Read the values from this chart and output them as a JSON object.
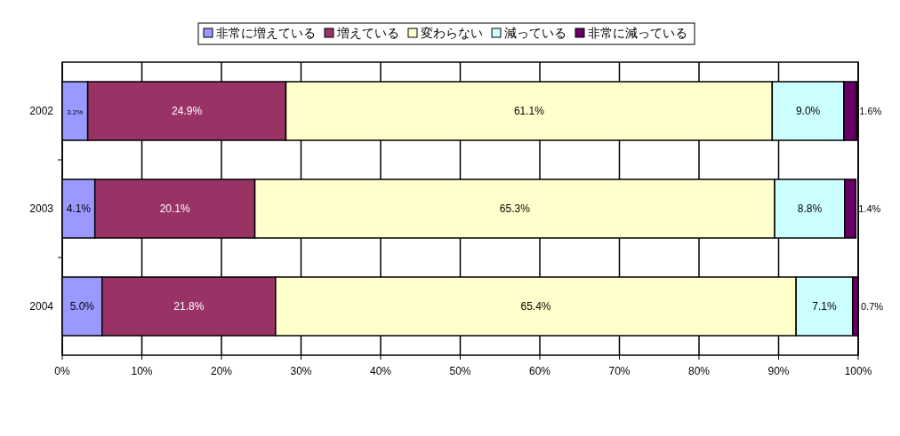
{
  "chart_data": {
    "type": "bar",
    "orientation": "horizontal",
    "stacked": true,
    "categories": [
      "2002",
      "2003",
      "2004"
    ],
    "series": [
      {
        "name": "非常に増えている",
        "color": "#9999ff",
        "values": [
          3.2,
          4.1,
          5.0
        ],
        "value_labels": [
          "3.2%",
          "4.1%",
          "5.0%"
        ]
      },
      {
        "name": "増えている",
        "color": "#993366",
        "values": [
          24.9,
          20.1,
          21.8
        ],
        "value_labels": [
          "24.9%",
          "20.1%",
          "21.8%"
        ]
      },
      {
        "name": "変わらない",
        "color": "#ffffcc",
        "values": [
          61.1,
          65.3,
          65.4
        ],
        "value_labels": [
          "61.1%",
          "65.3%",
          "65.4%"
        ]
      },
      {
        "name": "減っている",
        "color": "#ccffff",
        "values": [
          9.0,
          8.8,
          7.1
        ],
        "value_labels": [
          "9.0%",
          "8.8%",
          "7.1%"
        ]
      },
      {
        "name": "非常に減っている",
        "color": "#660066",
        "values": [
          1.6,
          1.4,
          0.7
        ],
        "value_labels": [
          "1.6%",
          "1.4%",
          "0.7%"
        ]
      }
    ],
    "xlim": [
      0,
      100
    ],
    "xticks": [
      {
        "value": 0,
        "label": "0%"
      },
      {
        "value": 10,
        "label": "10%"
      },
      {
        "value": 20,
        "label": "20%"
      },
      {
        "value": 30,
        "label": "30%"
      },
      {
        "value": 40,
        "label": "40%"
      },
      {
        "value": 50,
        "label": "50%"
      },
      {
        "value": 60,
        "label": "60%"
      },
      {
        "value": 70,
        "label": "70%"
      },
      {
        "value": 80,
        "label": "80%"
      },
      {
        "value": 90,
        "label": "90%"
      },
      {
        "value": 100,
        "label": "100%"
      }
    ],
    "grid": "x",
    "legend": "top"
  }
}
